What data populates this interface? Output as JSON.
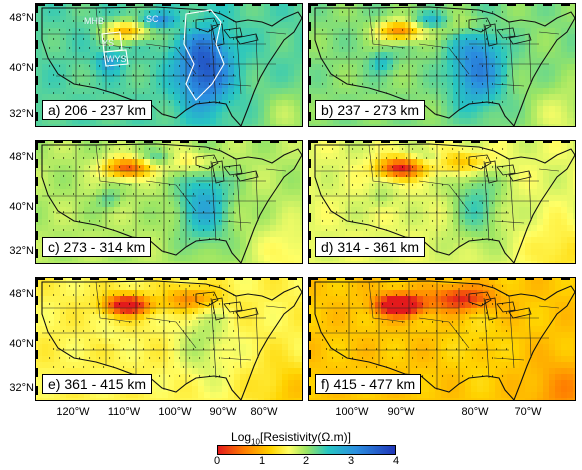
{
  "latitude_labels": [
    "48°N",
    "40°N",
    "32°N"
  ],
  "longitude_labels": [
    "120°W",
    "110°W",
    "100°W",
    "90°W",
    "80°W",
    "70°W"
  ],
  "panels": [
    {
      "label": "a) 206 - 237 km",
      "depth_range_km": [
        206,
        237
      ],
      "dominant_log_resistivity": 2.3
    },
    {
      "label": "b) 237 - 273 km",
      "depth_range_km": [
        237,
        273
      ],
      "dominant_log_resistivity": 2.1
    },
    {
      "label": "c) 273 - 314 km",
      "depth_range_km": [
        273,
        314
      ],
      "dominant_log_resistivity": 1.9
    },
    {
      "label": "d) 314 - 361 km",
      "depth_range_km": [
        314,
        361
      ],
      "dominant_log_resistivity": 1.7
    },
    {
      "label": "e) 361 - 415 km",
      "depth_range_km": [
        361,
        415
      ],
      "dominant_log_resistivity": 1.5
    },
    {
      "label": "f) 415 - 477 km",
      "depth_range_km": [
        415,
        477
      ],
      "dominant_log_resistivity": 1.1
    }
  ],
  "provinces": [
    "MHB",
    "SC",
    "YS",
    "WYS"
  ],
  "colorbar": {
    "title_prefix": "Log",
    "title_subscript": "10",
    "title_suffix": "[Resistivity(Ω.m)]",
    "ticks": [
      "0",
      "1",
      "2",
      "3",
      "4"
    ],
    "range": [
      0,
      4
    ]
  },
  "colors": {
    "low": "#e31a1c",
    "orange": "#ff7f00",
    "yellow": "#ffff66",
    "green": "#9be564",
    "cyan": "#27c6c2",
    "blue": "#2b8fe0",
    "high": "#1f36b8"
  }
}
